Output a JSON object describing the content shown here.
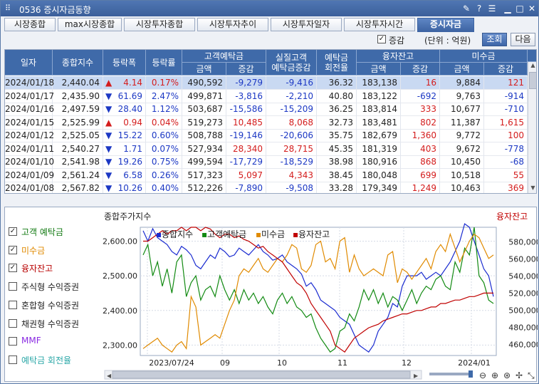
{
  "window": {
    "title": "0536 증시자금동향"
  },
  "tabs": [
    {
      "label": "시장종합"
    },
    {
      "label": "max시장종합"
    },
    {
      "label": "시장투자종합"
    },
    {
      "label": "시장투자추이"
    },
    {
      "label": "시장투자일자"
    },
    {
      "label": "시장투자시간"
    },
    {
      "label": "증시자금",
      "active": true
    }
  ],
  "toolbar": {
    "change_check_label": "증감",
    "unit_label": "(단위 : 억원)",
    "query_button": "조회",
    "next_button": "다음"
  },
  "table": {
    "headers": {
      "date": "일자",
      "index": "종합지수",
      "change": "등락폭",
      "rate": "등락률",
      "deposit": "고객예탁금",
      "real_deposit": "실질고객\n예탁금증감",
      "turnover": "예탁금\n회전율",
      "margin": "융자잔고",
      "unpaid": "미수금",
      "amount": "금액",
      "delta": "증감"
    },
    "rows": [
      {
        "date": "2024/01/18",
        "index": "2,440.04",
        "dir": "up",
        "change": "4.14",
        "rate": "0.17%",
        "dep_amt": "490,592",
        "dep_delta": "-9,279",
        "real": "-9,416",
        "turn": "36.32",
        "mar_amt": "183,138",
        "mar_delta": "16",
        "unp_amt": "9,884",
        "unp_delta": "121"
      },
      {
        "date": "2024/01/17",
        "index": "2,435.90",
        "dir": "dn",
        "change": "61.69",
        "rate": "2.47%",
        "dep_amt": "499,871",
        "dep_delta": "-3,816",
        "real": "-2,210",
        "turn": "40.80",
        "mar_amt": "183,122",
        "mar_delta": "-692",
        "unp_amt": "9,763",
        "unp_delta": "-914"
      },
      {
        "date": "2024/01/16",
        "index": "2,497.59",
        "dir": "dn",
        "change": "28.40",
        "rate": "1.12%",
        "dep_amt": "503,687",
        "dep_delta": "-15,586",
        "real": "-15,209",
        "turn": "36.25",
        "mar_amt": "183,814",
        "mar_delta": "333",
        "unp_amt": "10,677",
        "unp_delta": "-710"
      },
      {
        "date": "2024/01/15",
        "index": "2,525.99",
        "dir": "up",
        "change": "0.94",
        "rate": "0.04%",
        "dep_amt": "519,273",
        "dep_delta": "10,485",
        "real": "8,068",
        "turn": "32.73",
        "mar_amt": "183,481",
        "mar_delta": "802",
        "unp_amt": "11,387",
        "unp_delta": "1,615"
      },
      {
        "date": "2024/01/12",
        "index": "2,525.05",
        "dir": "dn",
        "change": "15.22",
        "rate": "0.60%",
        "dep_amt": "508,788",
        "dep_delta": "-19,146",
        "real": "-20,606",
        "turn": "35.75",
        "mar_amt": "182,679",
        "mar_delta": "1,360",
        "unp_amt": "9,772",
        "unp_delta": "100"
      },
      {
        "date": "2024/01/11",
        "index": "2,540.27",
        "dir": "dn",
        "change": "1.71",
        "rate": "0.07%",
        "dep_amt": "527,934",
        "dep_delta": "28,340",
        "real": "28,715",
        "turn": "45.35",
        "mar_amt": "181,319",
        "mar_delta": "403",
        "unp_amt": "9,672",
        "unp_delta": "-778"
      },
      {
        "date": "2024/01/10",
        "index": "2,541.98",
        "dir": "dn",
        "change": "19.26",
        "rate": "0.75%",
        "dep_amt": "499,594",
        "dep_delta": "-17,729",
        "real": "-18,529",
        "turn": "38.98",
        "mar_amt": "180,916",
        "mar_delta": "868",
        "unp_amt": "10,450",
        "unp_delta": "-68"
      },
      {
        "date": "2024/01/09",
        "index": "2,561.24",
        "dir": "dn",
        "change": "6.58",
        "rate": "0.26%",
        "dep_amt": "517,323",
        "dep_delta": "5,097",
        "real": "4,343",
        "turn": "38.45",
        "mar_amt": "180,048",
        "mar_delta": "699",
        "unp_amt": "10,518",
        "unp_delta": "55"
      },
      {
        "date": "2024/01/08",
        "index": "2,567.82",
        "dir": "dn",
        "change": "10.26",
        "rate": "0.40%",
        "dep_amt": "512,226",
        "dep_delta": "-7,890",
        "real": "-9,508",
        "turn": "33.28",
        "mar_amt": "179,349",
        "mar_delta": "1,249",
        "unp_amt": "10,463",
        "unp_delta": "369"
      }
    ]
  },
  "side_legend": [
    {
      "label": "고객 예탁금",
      "checked": true,
      "color": "#127a12"
    },
    {
      "label": "미수금",
      "checked": true,
      "color": "#e08a00"
    },
    {
      "label": "융자잔고",
      "checked": true,
      "color": "#b80000"
    },
    {
      "label": "주식형 수익증권",
      "checked": false,
      "color": "#222222"
    },
    {
      "label": "혼합형 수익증권",
      "checked": false,
      "color": "#222222"
    },
    {
      "label": "채권형 수익증권",
      "checked": false,
      "color": "#222222"
    },
    {
      "label": "MMF",
      "checked": false,
      "color": "#8a2be2"
    },
    {
      "label": "예탁금 회전율",
      "checked": false,
      "color": "#2aa7a7"
    }
  ],
  "chart_titles": {
    "left": "종합주가지수",
    "right": "융자잔고"
  },
  "colors": {
    "index": "#1a2bd0",
    "deposit": "#128a12",
    "unpaid": "#e08a00",
    "margin": "#c00000"
  },
  "chart_data": {
    "type": "line",
    "legend": [
      "종합지수",
      "고객예탁금",
      "미수금",
      "융자잔고"
    ],
    "x_ticks": [
      "2023/07/24",
      "09",
      "10",
      "11",
      "12",
      "2024/01"
    ],
    "left_axis": {
      "ticks": [
        "2,300.00",
        "2,400.00",
        "2,500.00",
        "2,600.00"
      ],
      "ylim": [
        2270,
        2640
      ]
    },
    "right_axis": {
      "ticks": [
        "460,000",
        "480,000",
        "500,000",
        "520,000",
        "540,000",
        "560,000",
        "580,000"
      ],
      "ylim": [
        447000,
        597000
      ]
    },
    "series": [
      {
        "name": "종합지수",
        "axis": "left",
        "values": [
          2630,
          2600,
          2636,
          2610,
          2600,
          2590,
          2570,
          2560,
          2585,
          2575,
          2560,
          2530,
          2520,
          2540,
          2560,
          2550,
          2580,
          2570,
          2555,
          2560,
          2580,
          2570,
          2560,
          2575,
          2590,
          2570,
          2560,
          2545,
          2550,
          2560,
          2540,
          2530,
          2520,
          2505,
          2470,
          2480,
          2460,
          2430,
          2420,
          2410,
          2400,
          2380,
          2370,
          2360,
          2330,
          2300,
          2290,
          2280,
          2300,
          2340,
          2360,
          2380,
          2420,
          2410,
          2470,
          2500,
          2500,
          2500,
          2510,
          2490,
          2500,
          2510,
          2500,
          2520,
          2540,
          2570,
          2600,
          2650,
          2640,
          2600,
          2560,
          2520,
          2500,
          2440
        ]
      },
      {
        "name": "고객예탁금",
        "axis": "left",
        "values": [
          2560,
          2590,
          2500,
          2540,
          2470,
          2520,
          2450,
          2540,
          2560,
          2440,
          2480,
          2500,
          2430,
          2460,
          2470,
          2440,
          2500,
          2460,
          2430,
          2460,
          2420,
          2460,
          2430,
          2450,
          2420,
          2440,
          2410,
          2390,
          2430,
          2450,
          2420,
          2440,
          2410,
          2400,
          2380,
          2390,
          2350,
          2320,
          2300,
          2280,
          2290,
          2340,
          2350,
          2390,
          2370,
          2410,
          2460,
          2430,
          2460,
          2420,
          2450,
          2410,
          2440,
          2430,
          2400,
          2430,
          2460,
          2420,
          2450,
          2470,
          2460,
          2490,
          2500,
          2470,
          2460,
          2540,
          2510,
          2580,
          2560,
          2640,
          2500,
          2480,
          2430,
          2420
        ]
      },
      {
        "name": "미수금",
        "axis": "left",
        "values": [
          2290,
          2300,
          2310,
          2320,
          2300,
          2290,
          2280,
          2300,
          2310,
          2290,
          2440,
          2410,
          2300,
          2310,
          2320,
          2330,
          2320,
          2360,
          2400,
          2430,
          2500,
          2520,
          2510,
          2530,
          2550,
          2520,
          2510,
          2530,
          2550,
          2540,
          2560,
          2590,
          2580,
          2520,
          2510,
          2530,
          2590,
          2600,
          2540,
          2550,
          2520,
          2600,
          2610,
          2510,
          2560,
          2520,
          2500,
          2510,
          2520,
          2510,
          2500,
          2560,
          2570,
          2480,
          2520,
          2510,
          2490,
          2510,
          2530,
          2550,
          2520,
          2570,
          2590,
          2570,
          2620,
          2580,
          2540,
          2570,
          2600,
          2620,
          2610,
          2580,
          2550,
          2560
        ]
      },
      {
        "name": "융자잔고",
        "axis": "left",
        "values": [
          2600,
          2600,
          2610,
          2620,
          2630,
          2620,
          2630,
          2630,
          2640,
          2630,
          2640,
          2640,
          2630,
          2640,
          2635,
          2620,
          2610,
          2620,
          2620,
          2610,
          2615,
          2605,
          2600,
          2590,
          2580,
          2585,
          2570,
          2560,
          2550,
          2540,
          2520,
          2500,
          2480,
          2470,
          2450,
          2420,
          2400,
          2380,
          2360,
          2340,
          2300,
          2290,
          2280,
          2300,
          2320,
          2330,
          2340,
          2350,
          2355,
          2360,
          2370,
          2375,
          2380,
          2385,
          2390,
          2390,
          2395,
          2400,
          2400,
          2405,
          2410,
          2410,
          2420,
          2420,
          2425,
          2430,
          2430,
          2435,
          2440,
          2440,
          2445,
          2450,
          2450,
          2450
        ]
      }
    ]
  }
}
